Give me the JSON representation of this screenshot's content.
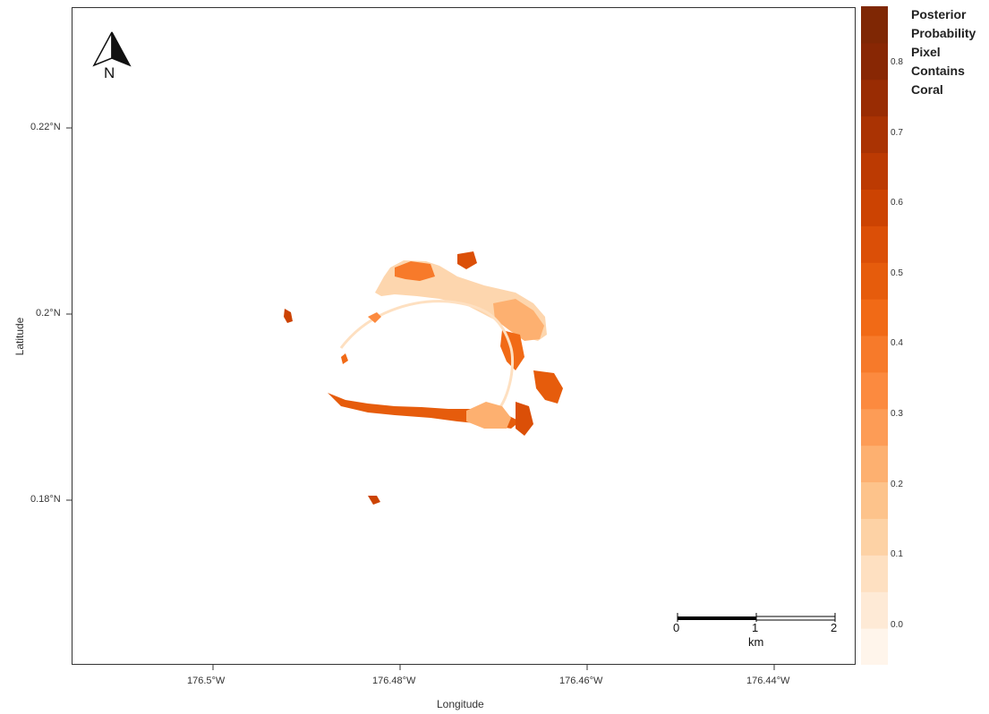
{
  "map": {
    "north_label": "N",
    "x_axis": {
      "title": "Longitude",
      "ticks": [
        "176.5°W",
        "176.48°W",
        "176.46°W",
        "176.44°W"
      ]
    },
    "y_axis": {
      "title": "Latitude",
      "ticks": [
        "0.22°N",
        "0.2°N",
        "0.18°N"
      ]
    },
    "scale_bar": {
      "labels": [
        "0",
        "1",
        "2"
      ],
      "unit": "km"
    }
  },
  "legend": {
    "title_lines": [
      "Posterior",
      "Probability",
      "Pixel",
      "Contains",
      "Coral"
    ],
    "labels": [
      "0.8",
      "0.7",
      "0.6",
      "0.5",
      "0.4",
      "0.3",
      "0.2",
      "0.1",
      "0.0"
    ],
    "colors": [
      "#fff5eb",
      "#feead6",
      "#fee0c1",
      "#fdd2a5",
      "#fdc38b",
      "#fdb070",
      "#fd9c56",
      "#fc8a3f",
      "#f77a2a",
      "#f16a16",
      "#e65c0c",
      "#db4f07",
      "#cc4302",
      "#bc3a02",
      "#aa3303",
      "#992c03",
      "#882704",
      "#7f2704"
    ]
  },
  "colors": {
    "coral_high": "#cc4302",
    "coral_mid": "#f16a16",
    "coral_low": "#fdd2a5"
  }
}
